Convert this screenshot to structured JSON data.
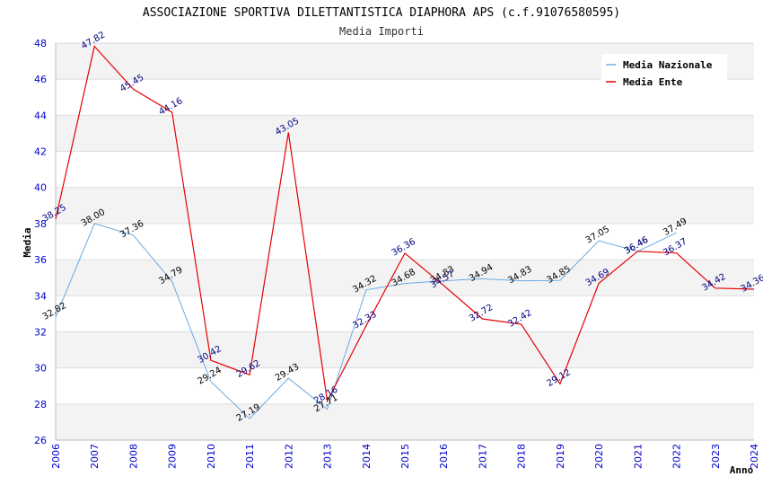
{
  "chart_data": {
    "type": "line",
    "title": "ASSOCIAZIONE SPORTIVA DILETTANTISTICA DIAPHORA APS (c.f.91076580595)",
    "subtitle": "Media Importi",
    "xlabel": "Anno",
    "ylabel": "Media",
    "ylim": [
      26,
      48
    ],
    "yticks": [
      26,
      28,
      30,
      32,
      34,
      36,
      38,
      40,
      42,
      44,
      46,
      48
    ],
    "x": [
      "2006",
      "2007",
      "2008",
      "2009",
      "2010",
      "2011",
      "2012",
      "2013",
      "2014",
      "2015",
      "2016",
      "2017",
      "2018",
      "2019",
      "2020",
      "2021",
      "2022",
      "2023",
      "2024"
    ],
    "legend_position": "top-right",
    "series": [
      {
        "name": "Media Nazionale",
        "color": "#6aaae4",
        "values": [
          32.82,
          38.0,
          37.36,
          34.79,
          29.24,
          27.19,
          29.43,
          27.71,
          34.32,
          34.68,
          34.83,
          34.94,
          34.83,
          34.85,
          37.05,
          36.46,
          37.49,
          null,
          null
        ],
        "labels": [
          "32.82",
          "38.00",
          "37.36",
          "34.79",
          "29.24",
          "27.19",
          "29.43",
          "27.71",
          "34.32",
          "34.68",
          "34.83",
          "34.94",
          "34.83",
          "34.85",
          "37.05",
          "36.46",
          "37.49",
          null,
          null
        ]
      },
      {
        "name": "Media Ente",
        "color": "#e60000",
        "values": [
          38.25,
          47.82,
          45.45,
          44.16,
          30.42,
          29.62,
          43.05,
          28.16,
          32.33,
          36.36,
          34.57,
          32.72,
          32.42,
          29.12,
          34.69,
          36.46,
          36.37,
          34.42,
          34.36
        ],
        "labels": [
          "38.25",
          "47.82",
          "45.45",
          "44.16",
          "30.42",
          "29.62",
          "43.05",
          "28.16",
          "32.33",
          "36.36",
          "34.57",
          "32.72",
          "32.42",
          "29.12",
          "34.69",
          "36.46",
          "36.37",
          "34.42",
          "34.36"
        ]
      }
    ]
  }
}
